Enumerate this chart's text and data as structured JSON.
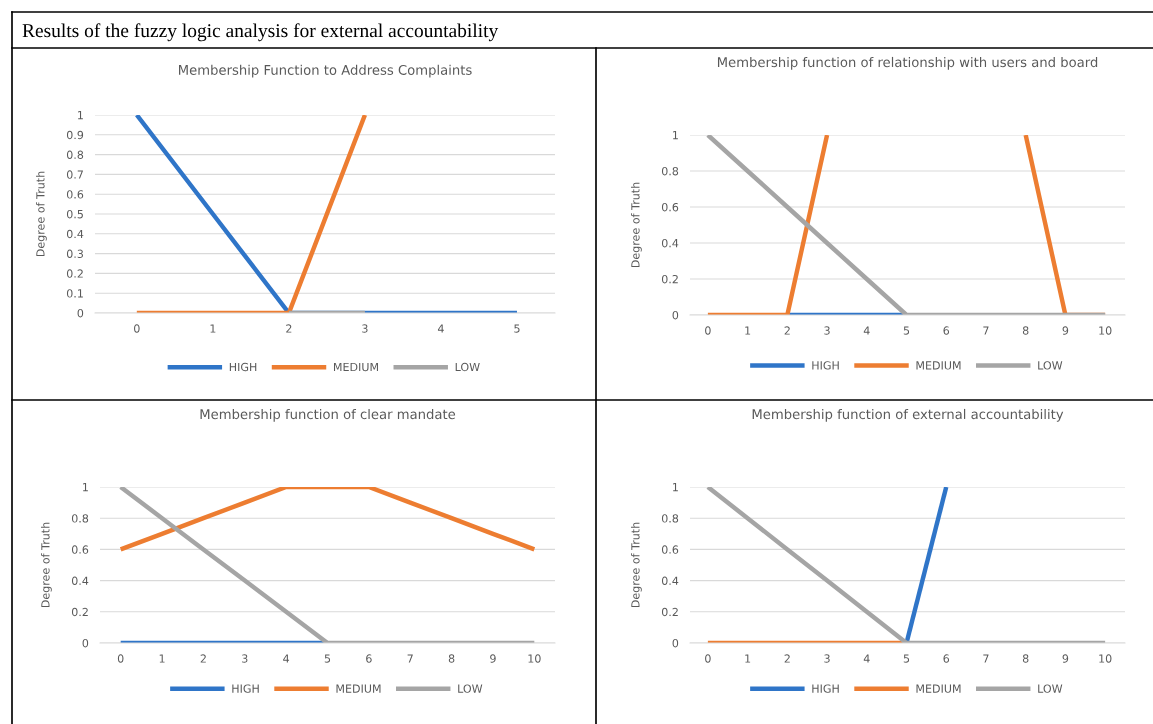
{
  "chart_data": [
    {
      "type": "line",
      "title": "Membership Function to Address Complaints",
      "ylabel": "Degree of Truth",
      "annotations": [
        "Results of the fuzzy logic analysis for external accountability"
      ],
      "x": [
        0,
        1,
        2,
        3,
        4,
        5
      ],
      "xlim": [
        -0.55,
        5.5
      ],
      "xticks": [
        0,
        1,
        2,
        3,
        4,
        5
      ],
      "ylim": [
        0,
        1
      ],
      "yticks": [
        0,
        0.1,
        0.2,
        0.3,
        0.4,
        0.5,
        0.6,
        0.7,
        0.8,
        0.9,
        1
      ],
      "grid": "y",
      "legend": "bottom",
      "marker": "none",
      "line_style": "solid",
      "series": [
        {
          "name": "HIGH",
          "color": "#2f75c8",
          "values": [
            1,
            0.5,
            0,
            0,
            0,
            0
          ]
        },
        {
          "name": "MEDIUM",
          "color": "#ed7d31",
          "values": [
            0,
            0,
            0,
            1,
            null,
            null
          ]
        },
        {
          "name": "LOW",
          "color": "#a5a5a5",
          "values": [
            null,
            null,
            0,
            0,
            null,
            null
          ]
        }
      ]
    },
    {
      "type": "line",
      "title": "Membership function of relationship with users and board",
      "ylabel": "Degree of Truth",
      "x": [
        0,
        1,
        2,
        3,
        4,
        5,
        6,
        7,
        8,
        9,
        10
      ],
      "xlim": [
        -0.45,
        10.5
      ],
      "xticks": [
        0,
        1,
        2,
        3,
        4,
        5,
        6,
        7,
        8,
        9,
        10
      ],
      "ylim": [
        0,
        1
      ],
      "yticks": [
        0,
        0.2,
        0.4,
        0.6,
        0.8,
        1
      ],
      "grid": "y",
      "legend": "bottom",
      "marker": "none",
      "line_style": "solid",
      "series": [
        {
          "name": "HIGH",
          "color": "#2f75c8",
          "values": [
            null,
            null,
            0,
            0,
            0,
            0,
            null,
            null,
            null,
            null,
            null
          ]
        },
        {
          "name": "MEDIUM",
          "color": "#ed7d31",
          "values": [
            0,
            0,
            0,
            1,
            null,
            null,
            null,
            null,
            1,
            0,
            0
          ]
        },
        {
          "name": "LOW",
          "color": "#a5a5a5",
          "values": [
            1,
            0.8,
            0.6,
            0.4,
            0.2,
            0,
            0,
            0,
            0,
            0,
            0
          ]
        }
      ]
    },
    {
      "type": "line",
      "title": "Membership function of clear mandate",
      "ylabel": "Degree of Truth",
      "x": [
        0,
        1,
        2,
        3,
        4,
        5,
        6,
        7,
        8,
        9,
        10
      ],
      "xlim": [
        -0.5,
        10.5
      ],
      "xticks": [
        0,
        1,
        2,
        3,
        4,
        5,
        6,
        7,
        8,
        9,
        10
      ],
      "ylim": [
        0,
        1
      ],
      "yticks": [
        0,
        0.2,
        0.4,
        0.6,
        0.8,
        1
      ],
      "grid": "y",
      "legend": "bottom",
      "marker": "none",
      "line_style": "solid",
      "series": [
        {
          "name": "HIGH",
          "color": "#2f75c8",
          "values": [
            0,
            0,
            0,
            0,
            0,
            0,
            null,
            null,
            null,
            null,
            null
          ]
        },
        {
          "name": "MEDIUM",
          "color": "#ed7d31",
          "values": [
            0.6,
            0.7,
            0.8,
            0.9,
            1,
            1,
            1,
            0.9,
            0.8,
            0.7,
            0.6
          ]
        },
        {
          "name": "LOW",
          "color": "#a5a5a5",
          "values": [
            1,
            0.8,
            0.6,
            0.4,
            0.2,
            0,
            0,
            0,
            0,
            0,
            0
          ]
        }
      ]
    },
    {
      "type": "line",
      "title": "Membership function of external accountability",
      "ylabel": "Degree of Truth",
      "x": [
        0,
        1,
        2,
        3,
        4,
        5,
        6,
        7,
        8,
        9,
        10
      ],
      "xlim": [
        -0.45,
        10.5
      ],
      "xticks": [
        0,
        1,
        2,
        3,
        4,
        5,
        6,
        7,
        8,
        9,
        10
      ],
      "ylim": [
        0,
        1
      ],
      "yticks": [
        0,
        0.2,
        0.4,
        0.6,
        0.8,
        1
      ],
      "grid": "y",
      "legend": "bottom",
      "marker": "none",
      "line_style": "solid",
      "series": [
        {
          "name": "HIGH",
          "color": "#2f75c8",
          "values": [
            null,
            null,
            null,
            null,
            null,
            0,
            1,
            null,
            null,
            null,
            null
          ]
        },
        {
          "name": "MEDIUM",
          "color": "#ed7d31",
          "values": [
            0,
            0,
            0,
            0,
            0,
            0,
            null,
            null,
            null,
            null,
            null
          ]
        },
        {
          "name": "LOW",
          "color": "#a5a5a5",
          "values": [
            1,
            0.8,
            0.6,
            0.4,
            0.2,
            0,
            0,
            0,
            0,
            0,
            0
          ]
        }
      ]
    }
  ]
}
